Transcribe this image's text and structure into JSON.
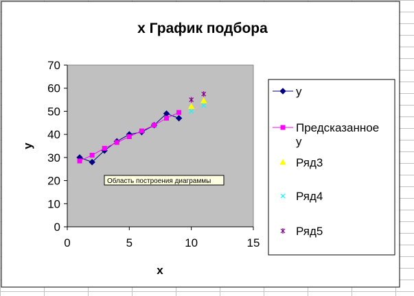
{
  "chart_data": {
    "type": "scatter",
    "title": "x График подбора",
    "xlabel": "x",
    "ylabel": "y",
    "xlim": [
      0,
      15
    ],
    "ylim": [
      0,
      70
    ],
    "x_ticks": [
      0,
      5,
      10,
      15
    ],
    "y_ticks": [
      0,
      10,
      20,
      30,
      40,
      50,
      60,
      70
    ],
    "legend_position": "right",
    "plot_background": "#c0c0c0",
    "series": [
      {
        "name": "y",
        "marker": "diamond",
        "line": true,
        "color": "#000080",
        "points": [
          [
            1,
            30
          ],
          [
            2,
            28
          ],
          [
            3,
            33
          ],
          [
            4,
            37
          ],
          [
            5,
            40
          ],
          [
            6,
            41
          ],
          [
            7,
            44
          ],
          [
            8,
            49
          ],
          [
            9,
            47
          ]
        ]
      },
      {
        "name": "Предсказанное y",
        "marker": "square",
        "line": true,
        "color": "#ff00ff",
        "points": [
          [
            1,
            28.5
          ],
          [
            2,
            31
          ],
          [
            3,
            34
          ],
          [
            4,
            36.5
          ],
          [
            5,
            39
          ],
          [
            6,
            41.5
          ],
          [
            7,
            44
          ],
          [
            8,
            47
          ],
          [
            9,
            49.5
          ]
        ]
      },
      {
        "name": "Ряд3",
        "marker": "triangle",
        "line": false,
        "color": "#ffff00",
        "points": [
          [
            10,
            52
          ],
          [
            11,
            54.5
          ]
        ]
      },
      {
        "name": "Ряд4",
        "marker": "x",
        "line": false,
        "color": "#00ffff",
        "points": [
          [
            10,
            50
          ],
          [
            11,
            52.5
          ]
        ]
      },
      {
        "name": "Ряд5",
        "marker": "star",
        "line": false,
        "color": "#800080",
        "points": [
          [
            10,
            55
          ],
          [
            11,
            57.5
          ]
        ]
      }
    ]
  },
  "tooltip": {
    "text": "Область построения диаграммы"
  }
}
